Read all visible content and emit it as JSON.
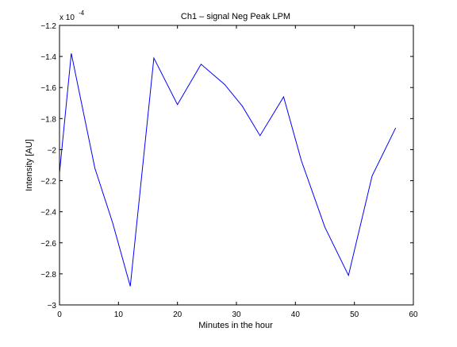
{
  "chart_data": {
    "type": "line",
    "title": "Ch1 – signal Neg Peak LPM",
    "xlabel": "Minutes in the hour",
    "ylabel": "Intensity [AU]",
    "y_multiplier_label": "x 10",
    "y_multiplier_exponent": "-4",
    "xlim": [
      0,
      60
    ],
    "ylim": [
      -3.0,
      -1.2
    ],
    "x_ticks": [
      0,
      10,
      20,
      30,
      40,
      50,
      60
    ],
    "x_tick_labels": [
      "0",
      "10",
      "20",
      "30",
      "40",
      "50",
      "60"
    ],
    "y_ticks": [
      -3.0,
      -2.8,
      -2.6,
      -2.4,
      -2.2,
      -2.0,
      -1.8,
      -1.6,
      -1.4,
      -1.2
    ],
    "y_tick_labels": [
      "−3",
      "−2.8",
      "−2.6",
      "−2.4",
      "−2.2",
      "−2",
      "−1.8",
      "−1.6",
      "−1.4",
      "−1.2"
    ],
    "grid": false,
    "series": [
      {
        "color": "#0000ff",
        "x": [
          0,
          2,
          6,
          9,
          12,
          16,
          20,
          24,
          28,
          31,
          34,
          38,
          41,
          45,
          49,
          53,
          57
        ],
        "y": [
          -2.15,
          -1.38,
          -2.12,
          -2.47,
          -2.88,
          -1.41,
          -1.71,
          -1.45,
          -1.58,
          -1.72,
          -1.91,
          -1.66,
          -2.07,
          -2.5,
          -2.81,
          -2.17,
          -1.86
        ]
      }
    ]
  }
}
